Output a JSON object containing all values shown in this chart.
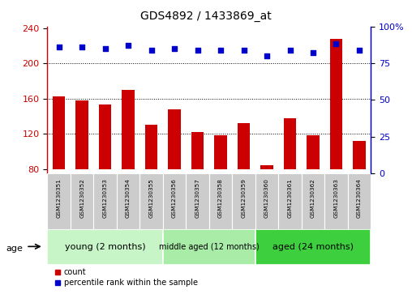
{
  "title": "GDS4892 / 1433869_at",
  "samples": [
    "GSM1230351",
    "GSM1230352",
    "GSM1230353",
    "GSM1230354",
    "GSM1230355",
    "GSM1230356",
    "GSM1230357",
    "GSM1230358",
    "GSM1230359",
    "GSM1230360",
    "GSM1230361",
    "GSM1230362",
    "GSM1230363",
    "GSM1230364"
  ],
  "counts": [
    163,
    158,
    153,
    170,
    130,
    148,
    122,
    118,
    132,
    84,
    138,
    118,
    228,
    112
  ],
  "percentiles": [
    86,
    86,
    85,
    87,
    84,
    85,
    84,
    84,
    84,
    80,
    84,
    82,
    88,
    84
  ],
  "ylim_left": [
    75,
    242
  ],
  "ylim_right": [
    0,
    100
  ],
  "yticks_left": [
    80,
    120,
    160,
    200,
    240
  ],
  "yticks_right": [
    0,
    25,
    50,
    75,
    100
  ],
  "gridlines": [
    120,
    160,
    200
  ],
  "groups": [
    {
      "label": "young (2 months)",
      "start": 0,
      "end": 5,
      "color": "#c8f5c8",
      "fontsize": 8
    },
    {
      "label": "middle aged (12 months)",
      "start": 5,
      "end": 9,
      "color": "#a8eca8",
      "fontsize": 7
    },
    {
      "label": "aged (24 months)",
      "start": 9,
      "end": 14,
      "color": "#3ecf3e",
      "fontsize": 8
    }
  ],
  "bar_color": "#cc0000",
  "dot_color": "#0000cc",
  "tick_area_color": "#cccccc",
  "tick_area_border": "#ffffff",
  "age_label": "age",
  "legend_count": "count",
  "legend_percentile": "percentile rank within the sample",
  "baseline": 75,
  "right_top_label": "100%"
}
